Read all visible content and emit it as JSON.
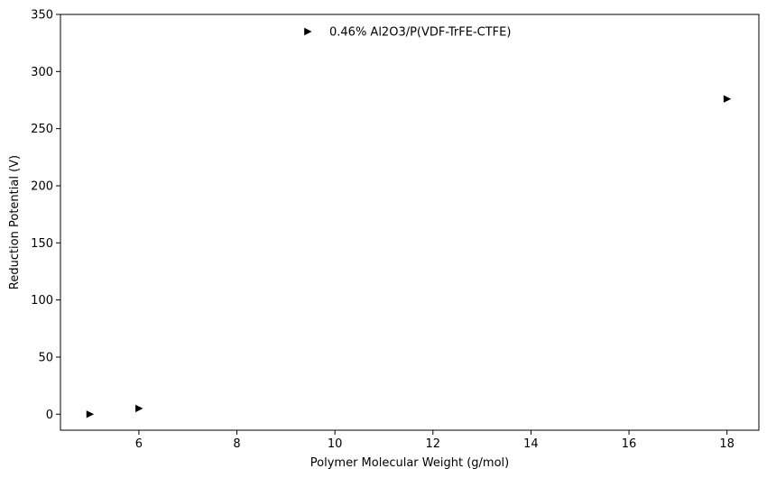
{
  "chart_data": {
    "type": "scatter",
    "title": "",
    "xlabel": "Polymer Molecular Weight (g/mol)",
    "ylabel": "Reduction Potential (V)",
    "xlim": [
      4.4,
      18.65
    ],
    "ylim": [
      -14,
      350
    ],
    "xticks": [
      6,
      8,
      10,
      12,
      14,
      16,
      18
    ],
    "yticks": [
      0,
      50,
      100,
      150,
      200,
      250,
      300,
      350
    ],
    "grid": false,
    "legend": "top-center",
    "series": [
      {
        "name": "0.46% Al2O3/P(VDF-TrFE-CTFE)",
        "marker": "triangle-right",
        "color": "#000000",
        "points": [
          {
            "x": 5,
            "y": 0
          },
          {
            "x": 6,
            "y": 5
          },
          {
            "x": 18,
            "y": 276
          }
        ]
      }
    ]
  }
}
